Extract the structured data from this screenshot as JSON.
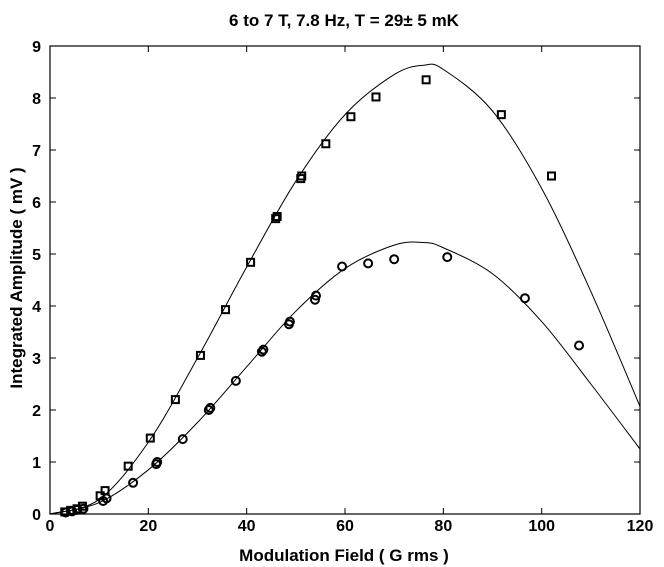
{
  "chart_data": {
    "type": "scatter",
    "title": "6 to 7 T, 7.8 Hz, T = 29± 5 mK",
    "xlabel": "Modulation Field ( G rms )",
    "ylabel": "Integrated Amplitude ( mV )",
    "xlim": [
      0,
      120
    ],
    "ylim": [
      0,
      9
    ],
    "xticks": [
      0,
      20,
      40,
      60,
      80,
      100,
      120
    ],
    "yticks": [
      0,
      1,
      2,
      3,
      4,
      5,
      6,
      7,
      8,
      9
    ],
    "grid": false,
    "series": [
      {
        "marker": "square",
        "x": [
          3,
          4.2,
          5.5,
          6.6,
          10.2,
          11.2,
          15.9,
          20.4,
          25.5,
          30.6,
          35.7,
          40.8,
          45.9,
          46.2,
          51,
          51.2,
          56.1,
          61.2,
          66.3,
          76.5,
          91.8,
          102
        ],
        "y": [
          0.04,
          0.07,
          0.1,
          0.15,
          0.35,
          0.45,
          0.92,
          1.46,
          2.2,
          3.05,
          3.93,
          4.84,
          5.68,
          5.72,
          6.45,
          6.5,
          7.12,
          7.64,
          8.02,
          8.35,
          7.68,
          6.5
        ]
      },
      {
        "marker": "circle",
        "x": [
          3.2,
          4.5,
          5.5,
          6.8,
          10.8,
          11.5,
          16.9,
          21.6,
          21.8,
          27,
          32.3,
          32.6,
          37.8,
          43.1,
          43.4,
          48.6,
          48.8,
          53.9,
          54.1,
          59.4,
          64.7,
          70,
          80.8,
          96.6,
          107.6
        ],
        "y": [
          0.03,
          0.05,
          0.08,
          0.1,
          0.25,
          0.3,
          0.6,
          0.96,
          1.0,
          1.44,
          2.0,
          2.04,
          2.56,
          3.12,
          3.16,
          3.65,
          3.7,
          4.12,
          4.2,
          4.76,
          4.82,
          4.9,
          4.94,
          4.15,
          3.24
        ]
      }
    ],
    "fit_curves": [
      {
        "x": [
          0,
          10,
          20,
          30,
          40,
          50,
          60,
          70,
          76,
          80,
          90,
          100,
          110,
          120
        ],
        "y": [
          0,
          0.28,
          1.38,
          3.0,
          4.75,
          6.4,
          7.68,
          8.45,
          8.63,
          8.55,
          7.75,
          6.26,
          4.28,
          2.07
        ]
      },
      {
        "x": [
          0,
          10,
          20,
          30,
          40,
          50,
          60,
          70,
          76,
          80,
          90,
          100,
          110,
          120
        ],
        "y": [
          0,
          0.22,
          0.85,
          1.76,
          2.83,
          3.9,
          4.72,
          5.17,
          5.22,
          5.12,
          4.62,
          3.7,
          2.5,
          1.25
        ]
      }
    ]
  }
}
